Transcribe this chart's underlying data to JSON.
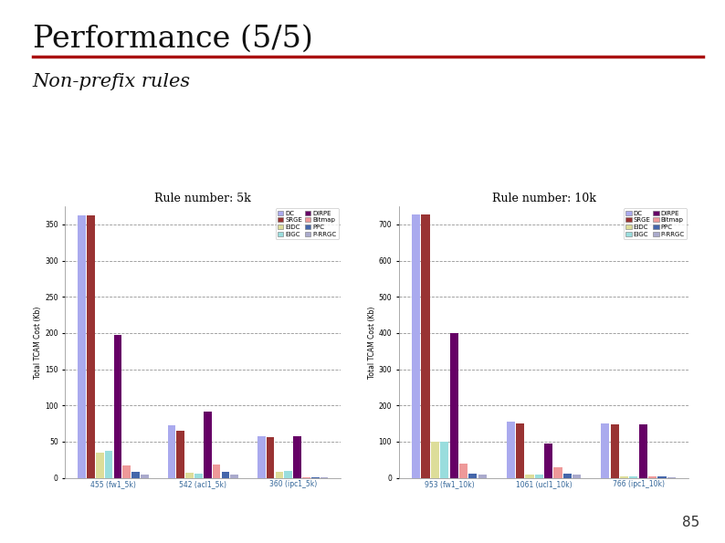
{
  "title": "Performance (5/5)",
  "subtitle": "Non-prefix rules",
  "page_number": "85",
  "background_color": "#ffffff",
  "chart1": {
    "title": "Rule number: 5k",
    "ylabel": "Total TCAM Cost (Kb)",
    "xlabels": [
      "455 (fw1_5k)",
      "542 (acl1_5k)",
      "360 (ipc1_5k)"
    ],
    "ylim": [
      0,
      375
    ],
    "yticks": [
      0,
      50,
      100,
      150,
      200,
      250,
      300,
      350
    ],
    "series": {
      "DC": [
        363,
        73,
        57
      ],
      "SRGE": [
        363,
        65,
        56
      ],
      "EIDC": [
        35,
        7,
        8
      ],
      "EIGC": [
        37,
        6,
        9
      ],
      "DIRPE": [
        197,
        92,
        57
      ],
      "Bitmap": [
        17,
        19,
        1
      ],
      "PPC": [
        8,
        8,
        1
      ],
      "P-RRGC": [
        5,
        5,
        1
      ]
    },
    "colors": {
      "DC": "#aaaaee",
      "SRGE": "#993333",
      "EIDC": "#dddd99",
      "EIGC": "#99dddd",
      "DIRPE": "#660066",
      "Bitmap": "#ee9999",
      "PPC": "#4466aa",
      "P-RRGC": "#aaaacc"
    }
  },
  "chart2": {
    "title": "Rule number: 10k",
    "ylabel": "Total TCAM Cost (Kb)",
    "xlabels": [
      "953 (fw1_10k)",
      "1061 (ucl1_10k)",
      "766 (ipc1_10k)"
    ],
    "ylim": [
      0,
      750
    ],
    "yticks": [
      0,
      100,
      200,
      300,
      400,
      500,
      600,
      700
    ],
    "series": {
      "DC": [
        728,
        155,
        150
      ],
      "SRGE": [
        728,
        150,
        148
      ],
      "EIDC": [
        100,
        10,
        5
      ],
      "EIGC": [
        100,
        10,
        5
      ],
      "DIRPE": [
        400,
        95,
        148
      ],
      "Bitmap": [
        40,
        30,
        5
      ],
      "PPC": [
        12,
        12,
        3
      ],
      "P-RRGC": [
        10,
        8,
        2
      ]
    },
    "colors": {
      "DC": "#aaaaee",
      "SRGE": "#993333",
      "EIDC": "#dddd99",
      "EIGC": "#99dddd",
      "DIRPE": "#660066",
      "Bitmap": "#ee9999",
      "PPC": "#4466aa",
      "P-RRGC": "#aaaacc"
    }
  },
  "title_fontsize": 24,
  "subtitle_fontsize": 15,
  "title_color": "#111111",
  "line_color": "#aa1111",
  "page_num_fontsize": 11
}
